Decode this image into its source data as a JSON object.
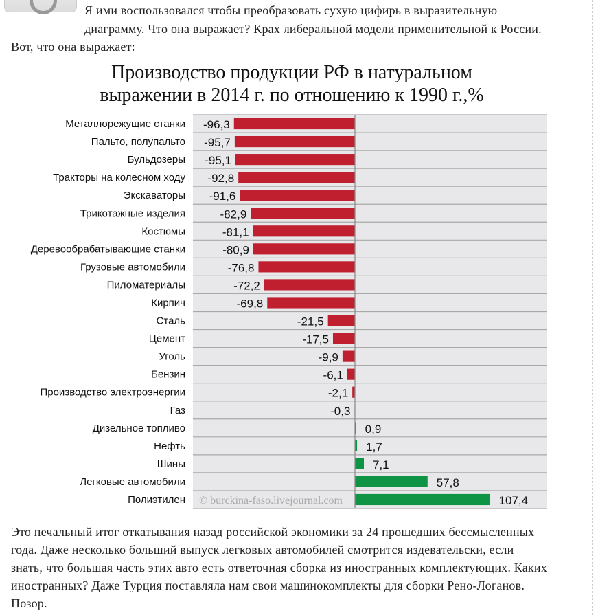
{
  "intro": {
    "lines": [
      "Я ими воспользовался чтобы преобразовать сухую цифирь в выразительную",
      "диаграмму. Что она выражает? Крах либеральной модели применительной к России.",
      "Вот, что она выражает:"
    ]
  },
  "chart_data": {
    "type": "bar",
    "orientation": "horizontal",
    "title_lines": [
      "Производство продукции РФ в натуральном",
      "выражении в 2014 г. по отношению к 1990 г.,%"
    ],
    "categories": [
      "Металлорежущие станки",
      "Пальто, полупальто",
      "Бульдозеры",
      "Тракторы на колесном ходу",
      "Экскаваторы",
      "Трикотажные изделия",
      "Костюмы",
      "Деревообрабатывающие  станки",
      "Грузовые автомобили",
      "Пиломатериалы",
      "Кирпич",
      "Сталь",
      "Цемент",
      "Уголь",
      "Бензин",
      "Производство электроэнергии",
      "Газ",
      "Дизельное топливо",
      "Нефть",
      "Шины",
      "Легковые автомобили",
      "Полиэтилен"
    ],
    "values": [
      -96.3,
      -95.7,
      -95.1,
      -92.8,
      -91.6,
      -82.9,
      -81.1,
      -80.9,
      -76.8,
      -72.2,
      -69.8,
      -21.5,
      -17.5,
      -9.9,
      -6.1,
      -2.1,
      -0.3,
      0.9,
      1.7,
      7.1,
      57.8,
      107.4
    ],
    "data_labels": [
      "-96,3",
      "-95,7",
      "-95,1",
      "-92,8",
      "-91,6",
      "-82,9",
      "-81,1",
      "-80,9",
      "-76,8",
      "-72,2",
      "-69,8",
      "-21,5",
      "-17,5",
      "-9,9",
      "-6,1",
      "-2,1",
      "-0,3",
      "0,9",
      "1,7",
      "7,1",
      "57,8",
      "107,4"
    ],
    "grid": "horizontal row separators",
    "colors": {
      "negative": "#c01f30",
      "positive": "#0e9444",
      "background": "#e8e8ea"
    },
    "watermark": "© burckina-faso.livejournal.com"
  },
  "outro": {
    "lines": [
      "Это печальный итог откатывания назад российской экономики за 24 прошедших бессмысленных",
      "года. Даже несколько больший выпуск легковых автомобилей смотрится издевательски, если",
      "знать, что большая часть этих авто есть ответочная сборка из иностранных комплектующих. Каких",
      "иностранных? Даже Турция поставляла нам свои машинокомплекты для сборки Рено-Логанов.",
      "Позор."
    ]
  }
}
